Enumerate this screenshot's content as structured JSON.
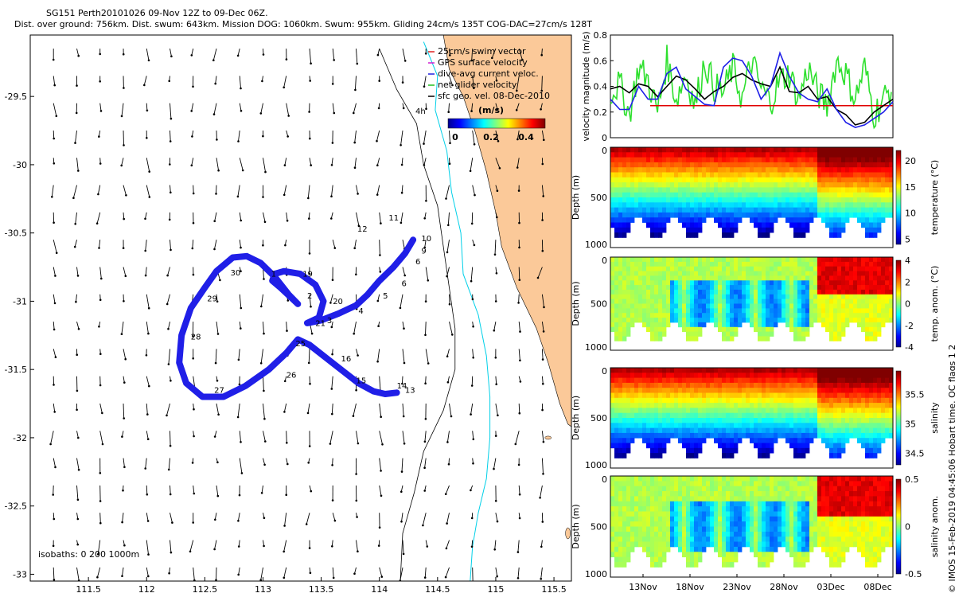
{
  "header": {
    "title": "SG151 Perth20101026 09-Nov 12Z to 09-Dec 06Z.",
    "subtitle": "Dist. over ground: 756km. Dist. swum: 643km. Mission DOG: 1060km. Swum: 955km. Gliding 24cm/s 135T COG-DAC=27cm/s 128T"
  },
  "credit": "© IMOS 15-Feb-2019 04:45:06 Hobart time. QC flags 1 2",
  "colors": {
    "land": "#fbc999",
    "coast_shelf": "#00d0e8",
    "isobath": "#000000",
    "track_dac": "#1f1fe8",
    "track_swim": "#e82020",
    "net_velocity": "#2ee02e",
    "velocity_black": "#000000",
    "threshold": "#e00000"
  },
  "chart_data": [
    {
      "type": "map",
      "xlim": [
        111.0,
        115.65
      ],
      "ylim": [
        -33.05,
        -29.05
      ],
      "x_ticks": [
        "111.5",
        "112",
        "112.5",
        "113",
        "113.5",
        "114",
        "114.5",
        "115",
        "115.5"
      ],
      "y_ticks": [
        "-29.5",
        "-30",
        "-30.5",
        "-31",
        "-31.5",
        "-32",
        "-32.5",
        "-33"
      ],
      "legend": {
        "entries": [
          "25cm/s swim vector",
          "GPS surface velocity",
          "dive-avg current veloc.",
          "net glider velocity",
          "sfc geo. vel. 08-Dec-2010"
        ],
        "colors": [
          "#e02020",
          "#d020d0",
          "#2020e0",
          "#20c020",
          "#000000"
        ]
      },
      "colorbar": {
        "label": "(m/s)",
        "ticks": [
          "0",
          "0.2",
          "0.4"
        ],
        "range": [
          0,
          0.5
        ]
      },
      "isobath_note": "isobaths: 0   200  1000m",
      "corner_note": "4h",
      "day_labels": [
        {
          "text": "1",
          "lon": 113.07,
          "lat": -30.82
        },
        {
          "text": "2",
          "lon": 113.38,
          "lat": -30.98
        },
        {
          "text": "3",
          "lon": 113.55,
          "lat": -31.16
        },
        {
          "text": "4",
          "lon": 113.82,
          "lat": -31.09
        },
        {
          "text": "5",
          "lon": 114.03,
          "lat": -30.98
        },
        {
          "text": "6",
          "lon": 114.19,
          "lat": -30.89
        },
        {
          "text": "6",
          "lon": 114.31,
          "lat": -30.73
        },
        {
          "text": "9",
          "lon": 114.36,
          "lat": -30.65
        },
        {
          "text": "10",
          "lon": 114.36,
          "lat": -30.56
        },
        {
          "text": "11",
          "lon": 114.08,
          "lat": -30.41
        },
        {
          "text": "12",
          "lon": 113.81,
          "lat": -30.49
        },
        {
          "text": "13",
          "lon": 114.22,
          "lat": -31.67
        },
        {
          "text": "14",
          "lon": 114.15,
          "lat": -31.64
        },
        {
          "text": "15",
          "lon": 113.8,
          "lat": -31.6
        },
        {
          "text": "16",
          "lon": 113.67,
          "lat": -31.44
        },
        {
          "text": "19",
          "lon": 113.34,
          "lat": -30.82
        },
        {
          "text": "20",
          "lon": 113.6,
          "lat": -31.02
        },
        {
          "text": "21",
          "lon": 113.45,
          "lat": -31.18
        },
        {
          "text": "25",
          "lon": 113.28,
          "lat": -31.33
        },
        {
          "text": "26",
          "lon": 113.2,
          "lat": -31.56
        },
        {
          "text": "27",
          "lon": 112.58,
          "lat": -31.67
        },
        {
          "text": "28",
          "lon": 112.38,
          "lat": -31.28
        },
        {
          "text": "29",
          "lon": 112.52,
          "lat": -31.0
        },
        {
          "text": "30",
          "lon": 112.72,
          "lat": -30.81
        }
      ],
      "track_points": [
        [
          114.29,
          -30.55
        ],
        [
          114.22,
          -30.65
        ],
        [
          114.12,
          -30.75
        ],
        [
          114.0,
          -30.85
        ],
        [
          113.9,
          -30.95
        ],
        [
          113.8,
          -31.03
        ],
        [
          113.65,
          -31.09
        ],
        [
          113.5,
          -31.14
        ],
        [
          113.38,
          -31.16
        ],
        [
          113.48,
          -31.12
        ],
        [
          113.52,
          -31.0
        ],
        [
          113.45,
          -30.88
        ],
        [
          113.32,
          -30.8
        ],
        [
          113.18,
          -30.78
        ],
        [
          113.1,
          -30.8
        ],
        [
          113.08,
          -30.85
        ],
        [
          113.15,
          -30.9
        ],
        [
          113.25,
          -30.98
        ],
        [
          113.3,
          -31.02
        ],
        [
          113.22,
          -30.95
        ],
        [
          113.1,
          -30.82
        ],
        [
          112.98,
          -30.72
        ],
        [
          112.86,
          -30.67
        ],
        [
          112.74,
          -30.68
        ],
        [
          112.6,
          -30.78
        ],
        [
          112.5,
          -30.9
        ],
        [
          112.38,
          -31.05
        ],
        [
          112.3,
          -31.25
        ],
        [
          112.28,
          -31.45
        ],
        [
          112.34,
          -31.6
        ],
        [
          112.48,
          -31.7
        ],
        [
          112.66,
          -31.7
        ],
        [
          112.85,
          -31.62
        ],
        [
          113.05,
          -31.5
        ],
        [
          113.2,
          -31.38
        ],
        [
          113.3,
          -31.28
        ],
        [
          113.4,
          -31.32
        ],
        [
          113.55,
          -31.42
        ],
        [
          113.7,
          -31.52
        ],
        [
          113.82,
          -31.6
        ],
        [
          113.95,
          -31.66
        ],
        [
          114.05,
          -31.68
        ],
        [
          114.15,
          -31.67
        ]
      ],
      "coastline": [
        [
          114.55,
          -29.05
        ],
        [
          114.6,
          -29.3
        ],
        [
          114.72,
          -29.5
        ],
        [
          114.82,
          -29.75
        ],
        [
          114.92,
          -30.05
        ],
        [
          115.0,
          -30.35
        ],
        [
          115.05,
          -30.6
        ],
        [
          115.18,
          -30.9
        ],
        [
          115.35,
          -31.2
        ],
        [
          115.45,
          -31.45
        ],
        [
          115.55,
          -31.75
        ],
        [
          115.62,
          -31.9
        ]
      ],
      "shelf_edge_200m": [
        [
          114.38,
          -29.1
        ],
        [
          114.5,
          -29.35
        ],
        [
          114.48,
          -29.6
        ],
        [
          114.58,
          -29.9
        ],
        [
          114.62,
          -30.2
        ],
        [
          114.7,
          -30.5
        ],
        [
          114.72,
          -30.8
        ],
        [
          114.85,
          -31.1
        ],
        [
          114.92,
          -31.4
        ],
        [
          114.95,
          -31.7
        ],
        [
          114.95,
          -32.0
        ],
        [
          114.92,
          -32.3
        ],
        [
          114.85,
          -32.55
        ],
        [
          114.8,
          -32.8
        ],
        [
          114.78,
          -33.05
        ]
      ],
      "shelf_edge_1000m": [
        [
          114.0,
          -29.15
        ],
        [
          114.15,
          -29.45
        ],
        [
          114.32,
          -29.7
        ],
        [
          114.38,
          -30.0
        ],
        [
          114.5,
          -30.3
        ],
        [
          114.55,
          -30.6
        ],
        [
          114.6,
          -30.9
        ],
        [
          114.65,
          -31.2
        ],
        [
          114.65,
          -31.5
        ],
        [
          114.55,
          -31.8
        ],
        [
          114.38,
          -32.1
        ],
        [
          114.3,
          -32.4
        ],
        [
          114.2,
          -32.7
        ],
        [
          114.18,
          -33.05
        ]
      ],
      "geo_vectors": {
        "u_mean": -0.05,
        "v_mean": -0.18
      }
    },
    {
      "type": "line",
      "ylabel": "velocity magnitude (m/s)",
      "ylim": [
        0,
        0.8
      ],
      "y_ticks": [
        "0",
        "0.2",
        "0.4",
        "0.6",
        "0.8"
      ],
      "x_range_days": [
        0,
        30
      ],
      "threshold": 0.25,
      "series": [
        {
          "color": "#2ee02e",
          "values": [
            0.35,
            0.42,
            0.18,
            0.55,
            0.45,
            0.2,
            0.6,
            0.3,
            0.5,
            0.25,
            0.6,
            0.4,
            0.35,
            0.55,
            0.3,
            0.6,
            0.38,
            0.28,
            0.45,
            0.5,
            0.3,
            0.55,
            0.35,
            0.25,
            0.6,
            0.5,
            0.3,
            0.55,
            0.18,
            0.3,
            0.4
          ]
        },
        {
          "color": "#000000",
          "values": [
            0.38,
            0.4,
            0.35,
            0.42,
            0.4,
            0.32,
            0.4,
            0.48,
            0.45,
            0.38,
            0.3,
            0.36,
            0.4,
            0.47,
            0.5,
            0.45,
            0.42,
            0.4,
            0.55,
            0.36,
            0.35,
            0.4,
            0.3,
            0.32,
            0.22,
            0.18,
            0.1,
            0.12,
            0.2,
            0.25,
            0.3
          ]
        },
        {
          "color": "#1f1fe8",
          "values": [
            0.3,
            0.22,
            0.22,
            0.4,
            0.3,
            0.3,
            0.5,
            0.55,
            0.38,
            0.32,
            0.26,
            0.25,
            0.55,
            0.62,
            0.6,
            0.48,
            0.3,
            0.4,
            0.66,
            0.48,
            0.35,
            0.3,
            0.28,
            0.38,
            0.22,
            0.12,
            0.08,
            0.1,
            0.15,
            0.2,
            0.28
          ]
        }
      ]
    },
    {
      "type": "heatmap",
      "ylabel": "Depth (m)",
      "yticks": [
        "0",
        "500",
        "1000"
      ],
      "colorbar_label": "temperature (°C)",
      "colorbar_ticks": [
        "20",
        "15",
        "10",
        "5"
      ],
      "range": [
        4,
        22
      ]
    },
    {
      "type": "heatmap",
      "ylabel": "Depth (m)",
      "yticks": [
        "0",
        "500",
        "1000"
      ],
      "colorbar_label": "temp. anom. (°C)",
      "colorbar_ticks": [
        "4",
        "2",
        "0",
        "-2",
        "-4"
      ],
      "range": [
        -4,
        4
      ]
    },
    {
      "type": "heatmap",
      "ylabel": "Depth (m)",
      "yticks": [
        "0",
        "500",
        "1000"
      ],
      "colorbar_label": "salinity",
      "colorbar_ticks": [
        "35.5",
        "35",
        "34.5"
      ],
      "range": [
        34.3,
        35.9
      ]
    },
    {
      "type": "heatmap",
      "ylabel": "Depth (m)",
      "yticks": [
        "0",
        "500",
        "1000"
      ],
      "colorbar_label": "salinity anom.",
      "colorbar_ticks": [
        "0.5",
        "0",
        "-0.5"
      ],
      "range": [
        -0.5,
        0.5
      ],
      "x_ticks": [
        "13Nov",
        "18Nov",
        "23Nov",
        "28Nov",
        "03Dec",
        "08Dec"
      ]
    }
  ]
}
